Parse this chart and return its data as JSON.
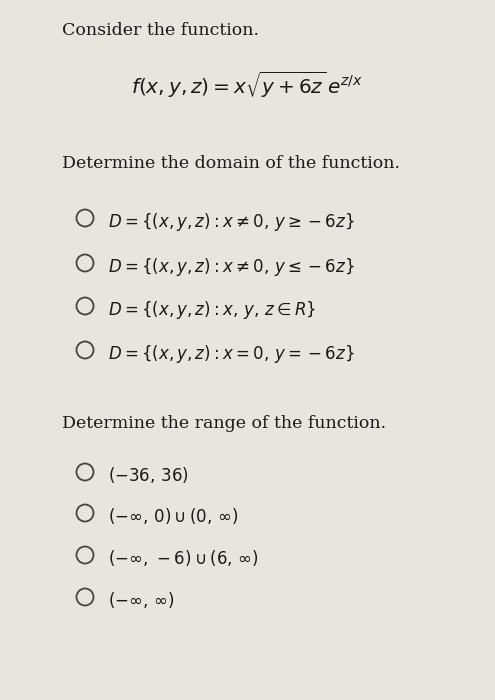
{
  "background_color": "#e8e4de",
  "text_color": "#1a1a1a",
  "circle_color": "#444444",
  "title_text": "Consider the function.",
  "formula_latex": "$f(x, y, z) = x\\sqrt{y + 6z}\\,e^{z/x}$",
  "domain_header": "Determine the domain of the function.",
  "range_header": "Determine the range of the function.",
  "domain_options_latex": [
    "$D = \\{(x, y, z): x \\neq 0,\\, y \\geq -6z\\}$",
    "$D = \\{(x, y, z): x \\neq 0,\\, y \\leq -6z\\}$",
    "$D = \\{(x, y, z): x,\\, y,\\, z \\in R\\}$",
    "$D = \\{(x, y, z): x = 0,\\, y = -6z\\}$"
  ],
  "range_options_latex": [
    "$(-36,\\, 36)$",
    "$(-\\infty,\\, 0) \\cup (0,\\, \\infty)$",
    "$(-\\infty,\\, -6) \\cup (6,\\, \\infty)$",
    "$(-\\infty,\\, \\infty)$"
  ],
  "font_size_title": 12.5,
  "font_size_formula": 14.5,
  "font_size_header": 12.5,
  "font_size_option": 12.0,
  "fig_width": 4.95,
  "fig_height": 7.0,
  "dpi": 100
}
